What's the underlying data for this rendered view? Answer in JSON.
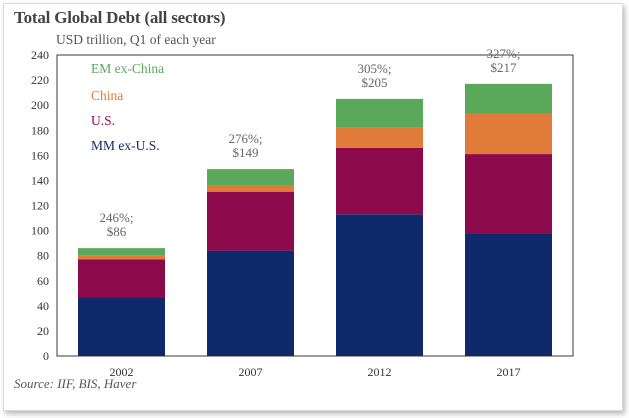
{
  "title": "Total Global Debt (all sectors)",
  "subtitle": "USD trillion, Q1 of each year",
  "source": "Source: IIF, BIS, Haver",
  "chart_data": {
    "type": "bar",
    "stacked": true,
    "categories": [
      "2002",
      "2007",
      "2012",
      "2017"
    ],
    "series": [
      {
        "name": "MM ex-U.S.",
        "color": "#0e2a6b",
        "values": [
          47,
          84,
          113,
          98
        ]
      },
      {
        "name": "U.S.",
        "color": "#8c0a4b",
        "values": [
          30,
          47,
          53,
          63
        ]
      },
      {
        "name": "China",
        "color": "#e07b39",
        "values": [
          3,
          5,
          16,
          32
        ]
      },
      {
        "name": "EM ex-China",
        "color": "#5aa85a",
        "values": [
          6,
          13,
          23,
          24
        ]
      }
    ],
    "annotations": [
      {
        "pct": "246%;",
        "total": "$86"
      },
      {
        "pct": "276%;",
        "total": "$149"
      },
      {
        "pct": "305%;",
        "total": "$205"
      },
      {
        "pct": "327%;",
        "total": "$217"
      }
    ],
    "legend_order": [
      "EM ex-China",
      "China",
      "U.S.",
      "MM ex-U.S."
    ],
    "legend_position": "top-left",
    "ylim": [
      0,
      240
    ],
    "yticks": [
      "0",
      "20",
      "40",
      "60",
      "80",
      "100",
      "120",
      "140",
      "160",
      "180",
      "200",
      "220",
      "240"
    ],
    "grid": false
  }
}
